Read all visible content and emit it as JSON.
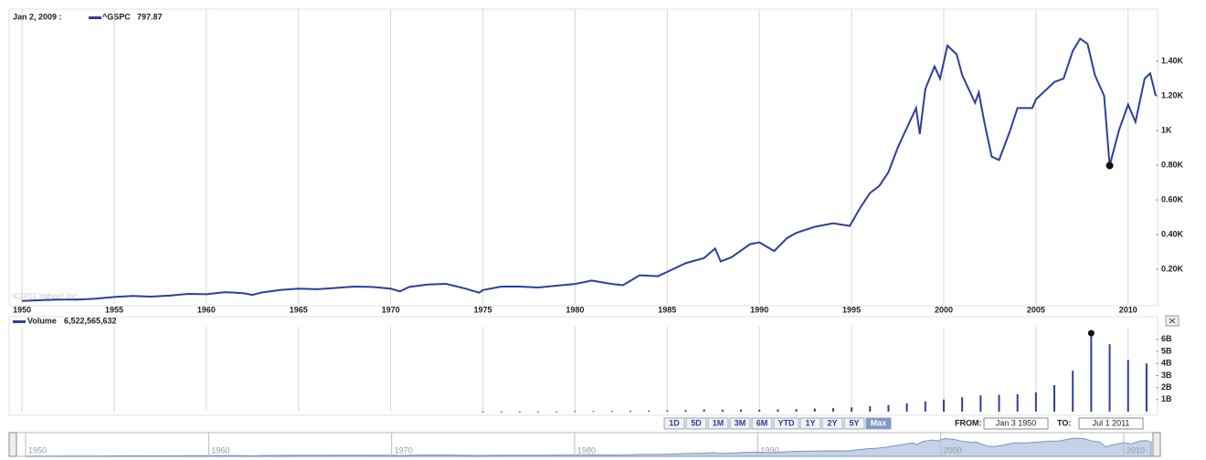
{
  "chart_data": [
    {
      "type": "line",
      "hover_date": "Jan 2, 2009 :",
      "x": [
        1950,
        1951,
        1952,
        1953,
        1954,
        1955,
        1956,
        1957,
        1958,
        1959,
        1960,
        1961,
        1962,
        1962.5,
        1963,
        1964,
        1965,
        1966,
        1967,
        1968,
        1969,
        1970,
        1970.5,
        1971,
        1972,
        1973,
        1974,
        1974.8,
        1975,
        1976,
        1977,
        1978,
        1979,
        1980,
        1980.9,
        1982,
        1982.6,
        1983.5,
        1984.5,
        1985,
        1986,
        1987,
        1987.6,
        1987.9,
        1988.5,
        1989.5,
        1990,
        1990.8,
        1991.5,
        1992,
        1993,
        1994,
        1994.9,
        1995.5,
        1996,
        1996.5,
        1997,
        1997.5,
        1997.8,
        1998.5,
        1998.7,
        1999,
        1999.5,
        1999.8,
        2000.2,
        2000.7,
        2001,
        2001.7,
        2001.9,
        2002.2,
        2002.6,
        2003,
        2003.6,
        2004,
        2004.8,
        2005,
        2005.5,
        2006,
        2006.5,
        2007,
        2007.4,
        2007.8,
        2008.2,
        2008.7,
        2009,
        2009.5,
        2010,
        2010.4,
        2010.9,
        2011.2,
        2011.5
      ],
      "series": [
        {
          "name": "^GSPC",
          "color": "#2e3f99",
          "values": [
            17,
            22,
            25,
            25,
            30,
            40,
            46,
            42,
            48,
            58,
            56,
            68,
            62,
            52,
            66,
            80,
            88,
            85,
            92,
            100,
            98,
            88,
            72,
            98,
            112,
            116,
            90,
            65,
            80,
            100,
            100,
            95,
            105,
            115,
            135,
            115,
            108,
            165,
            160,
            185,
            235,
            265,
            320,
            245,
            270,
            345,
            355,
            305,
            380,
            410,
            445,
            465,
            450,
            560,
            640,
            680,
            760,
            900,
            970,
            1130,
            980,
            1240,
            1370,
            1300,
            1490,
            1440,
            1320,
            1160,
            1220,
            1050,
            850,
            830,
            1000,
            1130,
            1130,
            1180,
            1230,
            1280,
            1300,
            1460,
            1530,
            1500,
            1320,
            1200,
            797.87,
            1000,
            1150,
            1050,
            1300,
            1330,
            1200
          ]
        }
      ],
      "xlim": [
        1949.4,
        2011.5
      ],
      "xticks": [
        1950,
        1955,
        1960,
        1965,
        1970,
        1975,
        1980,
        1985,
        1990,
        1995,
        2000,
        2005,
        2010
      ],
      "ylim": [
        0,
        1690
      ],
      "yticks": [
        {
          "value": 200,
          "label": "0.20K"
        },
        {
          "value": 400,
          "label": "0.40K"
        },
        {
          "value": 600,
          "label": "0.60K"
        },
        {
          "value": 800,
          "label": "0.80K"
        },
        {
          "value": 1000,
          "label": "1K"
        },
        {
          "value": 1200,
          "label": "1.20K"
        },
        {
          "value": 1400,
          "label": "1.40K"
        }
      ],
      "grid": true,
      "copyright": "©2011 Yahoo! Inc.",
      "navigator_xlim": [
        1949.6,
        2011.6
      ],
      "navigator_xticks": [
        1950,
        1960,
        1970,
        1980,
        1990,
        2000,
        2010
      ]
    },
    {
      "type": "bar",
      "x": [
        1975,
        1976,
        1977,
        1978,
        1979,
        1980,
        1981,
        1982,
        1983,
        1984,
        1985,
        1986,
        1987,
        1988,
        1989,
        1990,
        1991,
        1992,
        1993,
        1994,
        1995,
        1996,
        1997,
        1998,
        1999,
        2000,
        2001,
        2002,
        2003,
        2004,
        2005,
        2006,
        2007,
        2008,
        2009,
        2010,
        2011
      ],
      "series": [
        {
          "name": "Volume",
          "color": "#2e3f99",
          "hover_value_label": "6,522,565,632",
          "values": [
            0.02,
            0.02,
            0.02,
            0.03,
            0.03,
            0.04,
            0.05,
            0.06,
            0.08,
            0.09,
            0.1,
            0.13,
            0.18,
            0.16,
            0.16,
            0.16,
            0.18,
            0.2,
            0.26,
            0.29,
            0.35,
            0.45,
            0.55,
            0.7,
            0.85,
            1.0,
            1.2,
            1.35,
            1.4,
            1.45,
            1.6,
            2.2,
            3.4,
            6.52,
            5.6,
            4.3,
            4.0
          ]
        }
      ],
      "xlim": [
        1949.4,
        2011.5
      ],
      "ylim": [
        0,
        6.9
      ],
      "yticks": [
        {
          "value": 1,
          "label": "1B"
        },
        {
          "value": 2,
          "label": "2B"
        },
        {
          "value": 3,
          "label": "3B"
        },
        {
          "value": 4,
          "label": "4B"
        },
        {
          "value": 5,
          "label": "5B"
        },
        {
          "value": 6,
          "label": "6B"
        }
      ],
      "grid": true
    }
  ],
  "controls": {
    "ranges": [
      "1D",
      "5D",
      "1M",
      "3M",
      "6M",
      "YTD",
      "1Y",
      "2Y",
      "5Y",
      "Max"
    ],
    "selected": "Max",
    "from_label": "FROM:",
    "from": "Jan 3 1950",
    "to_label": "TO:",
    "to": "Jul 1 2011"
  }
}
